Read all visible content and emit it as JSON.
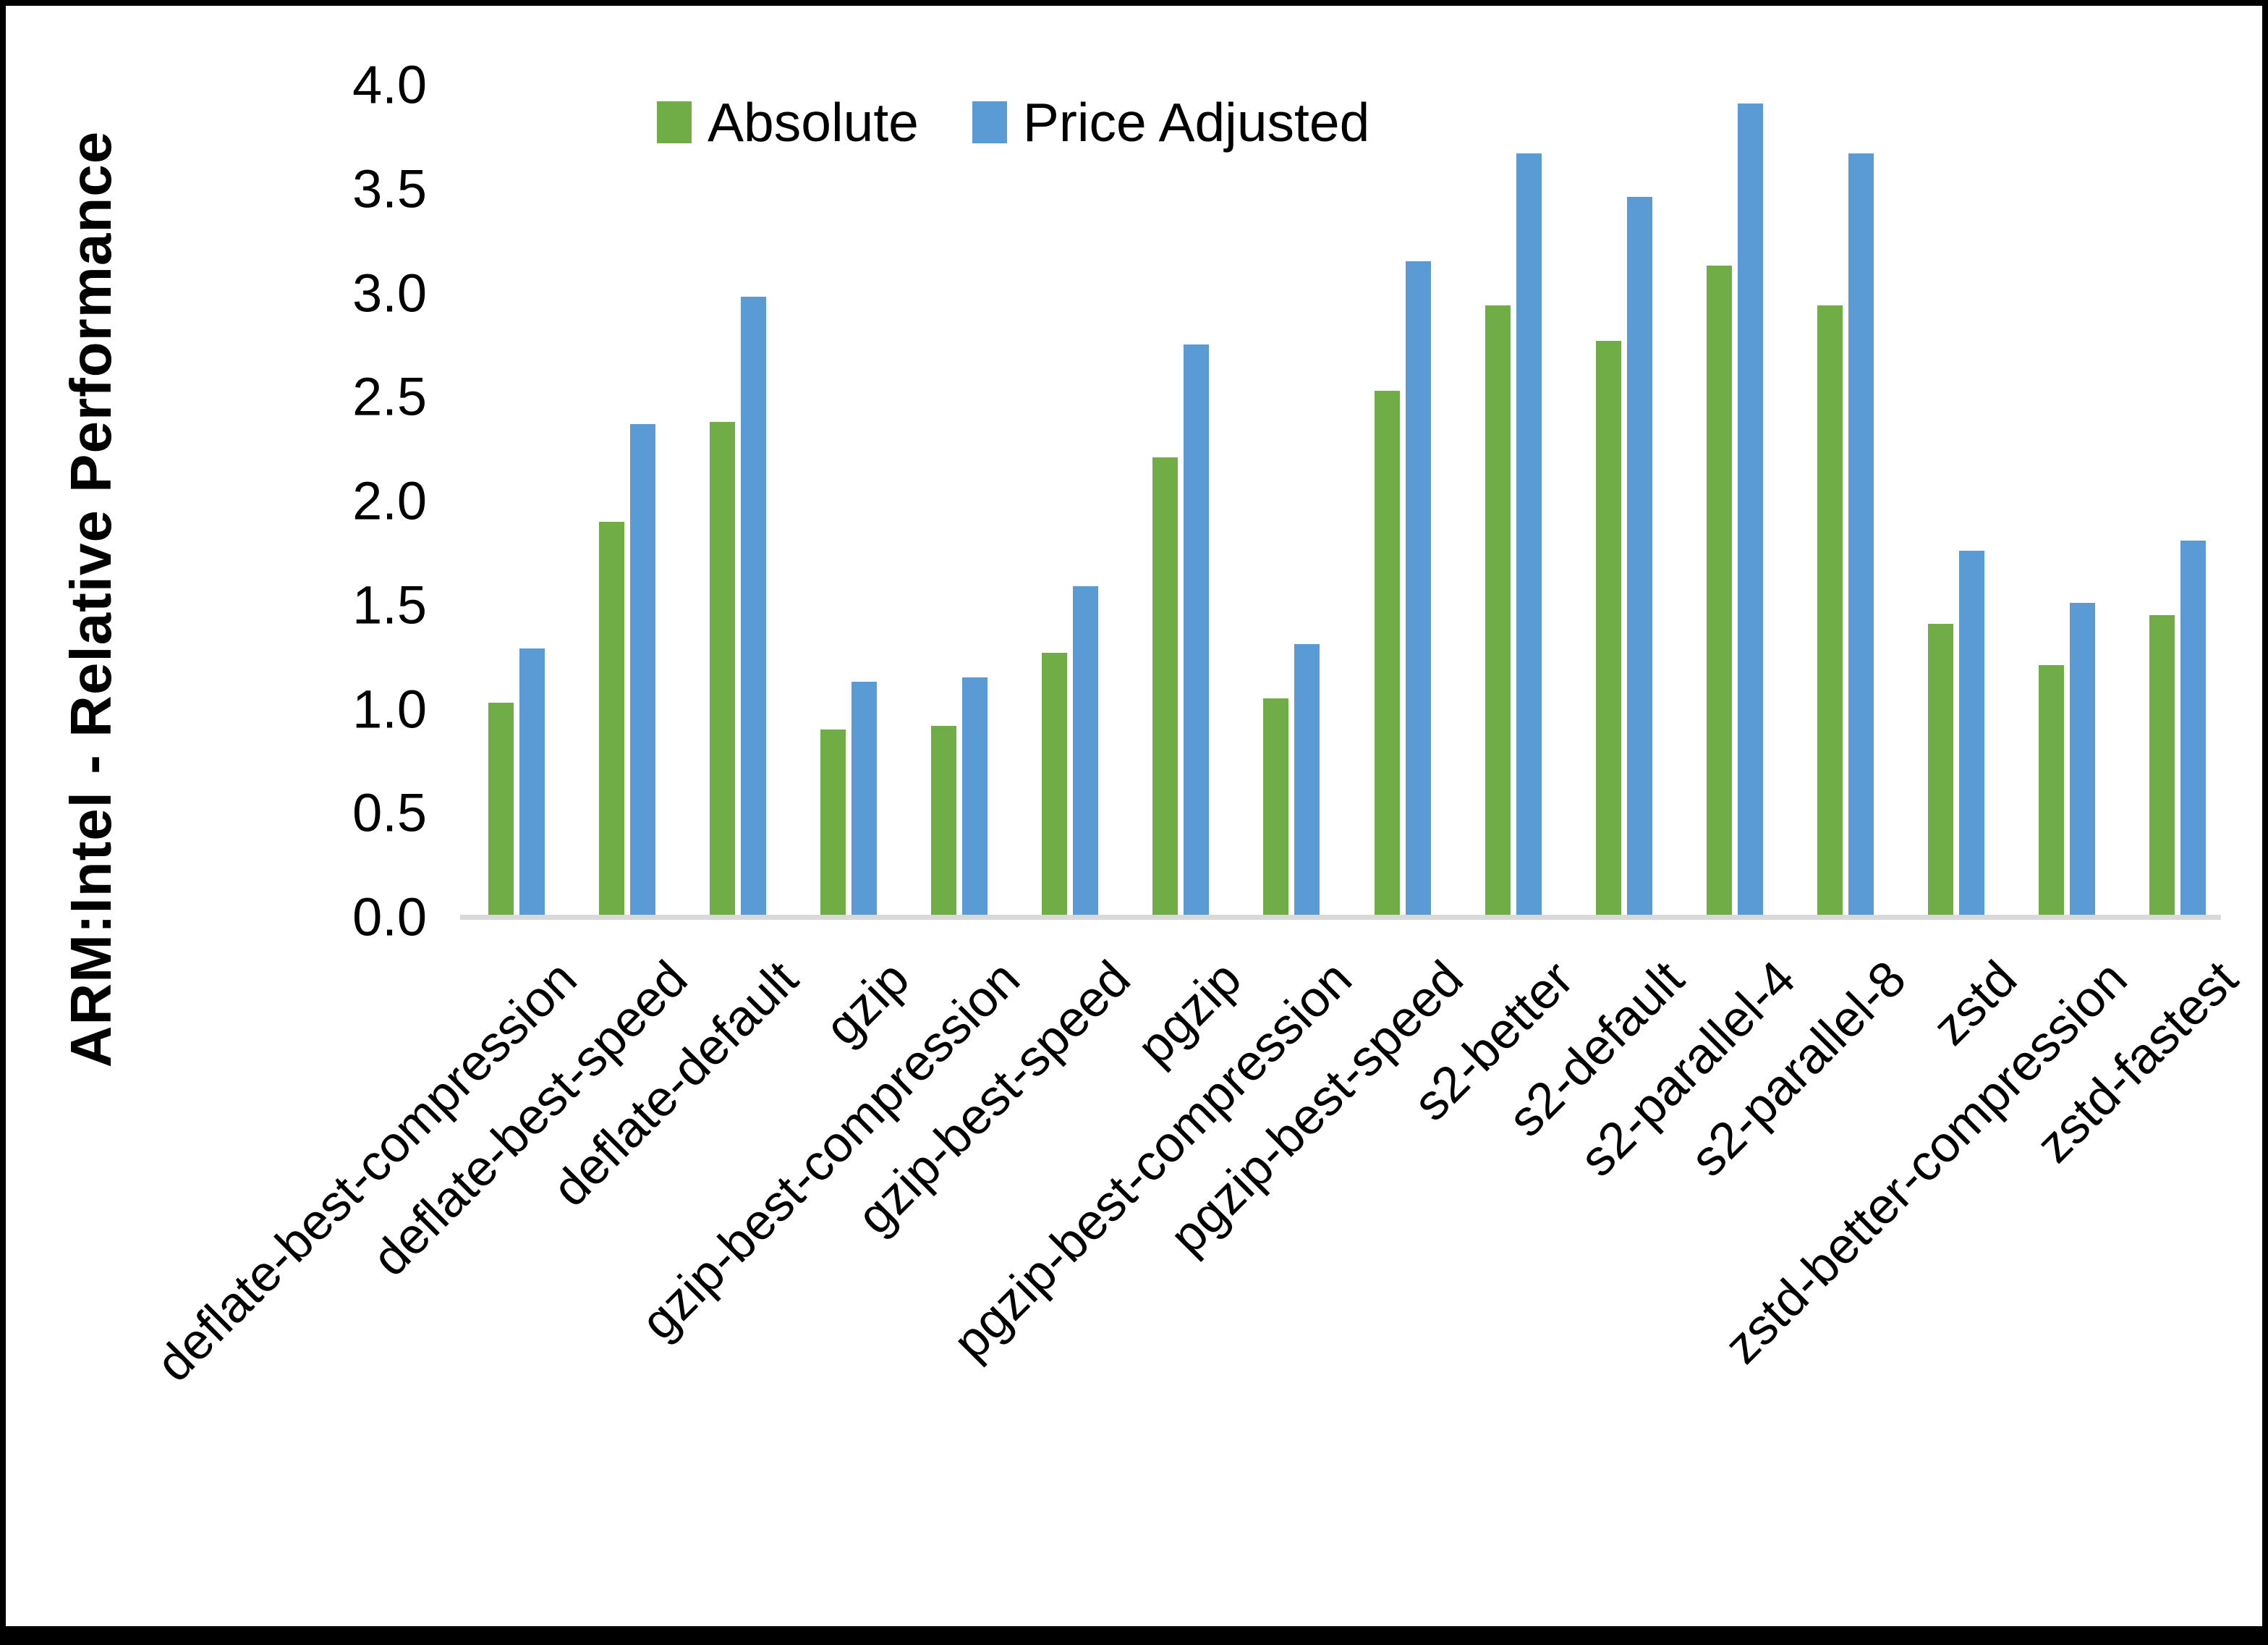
{
  "figure": {
    "background": "#ffffff",
    "border_color": "#000000",
    "axis_line_color": "#d9d9d9"
  },
  "legend": {
    "position": "top",
    "items": [
      {
        "label": "Absolute",
        "color": "#70AD47"
      },
      {
        "label": "Price Adjusted",
        "color": "#5B9BD5"
      }
    ]
  },
  "chart_data": {
    "type": "bar",
    "title": "",
    "xlabel": "",
    "ylabel": "ARM:Intel - Relative Performance",
    "ylim": [
      0.0,
      4.0
    ],
    "ytick_step": 0.5,
    "ytick_labels": [
      "0.0",
      "0.5",
      "1.0",
      "1.5",
      "2.0",
      "2.5",
      "3.0",
      "3.5",
      "4.0"
    ],
    "grid": false,
    "legend_position": "top",
    "categories": [
      "deflate-best-compression",
      "deflate-best-speed",
      "deflate-default",
      "gzip",
      "gzip-best-compression",
      "gzip-best-speed",
      "pgzip",
      "pgzip-best-compression",
      "pgzip-best-speed",
      "s2-better",
      "s2-default",
      "s2-parallel-4",
      "s2-parallel-8",
      "zstd",
      "zstd-better-compression",
      "zstd-fastest"
    ],
    "series": [
      {
        "name": "Absolute",
        "color": "#70AD47",
        "values": [
          1.03,
          1.9,
          2.38,
          0.9,
          0.92,
          1.27,
          2.21,
          1.05,
          2.53,
          2.94,
          2.77,
          3.13,
          2.94,
          1.41,
          1.21,
          1.45
        ]
      },
      {
        "name": "Price Adjusted",
        "color": "#5B9BD5",
        "values": [
          1.29,
          2.37,
          2.98,
          1.13,
          1.15,
          1.59,
          2.75,
          1.31,
          3.15,
          3.67,
          3.46,
          3.91,
          3.67,
          1.76,
          1.51,
          1.81
        ]
      }
    ]
  }
}
